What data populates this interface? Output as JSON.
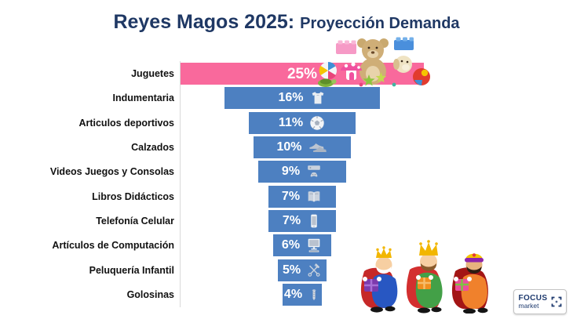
{
  "title": {
    "main": "Reyes Magos 2025:",
    "sub": "Proyección Demanda"
  },
  "chart_data": {
    "type": "bar",
    "subtype": "centered-funnel",
    "title": "Reyes Magos 2025: Proyección Demanda",
    "xlabel": "",
    "ylabel": "",
    "unit": "%",
    "xlim": [
      0,
      25
    ],
    "grid": false,
    "legend": false,
    "categories": [
      "Juguetes",
      "Indumentaria",
      "Articulos deportivos",
      "Calzados",
      "Videos Juegos y Consolas",
      "Libros Didácticos",
      "Telefonía Celular",
      "Artículos de Computación",
      "Peluquería Infantil",
      "Golosinas"
    ],
    "values": [
      25,
      16,
      11,
      10,
      9,
      7,
      7,
      6,
      5,
      4
    ],
    "value_labels": [
      "25%",
      "16%",
      "11%",
      "10%",
      "9%",
      "7%",
      "7%",
      "6%",
      "5%",
      "4%"
    ],
    "icons": [
      "toys-pile",
      "tshirt",
      "soccer-ball",
      "sneakers",
      "game-console",
      "open-book",
      "smartphone",
      "desktop-computer",
      "scissors-comb",
      "candy"
    ],
    "bar_colors": [
      "#f9699c",
      "#4d80c1",
      "#4d80c1",
      "#4d80c1",
      "#4d80c1",
      "#4d80c1",
      "#4d80c1",
      "#4d80c1",
      "#4d80c1",
      "#4d80c1"
    ]
  },
  "colors": {
    "title": "#1f3864",
    "label": "#111111",
    "value_text": "#ffffff",
    "bar_blue": "#4d80c1",
    "bar_pink": "#f9699c",
    "axis_line": "#d9d9d9",
    "background": "#ffffff"
  },
  "logo": {
    "top": "FOCUS",
    "bottom": "market"
  },
  "illustrations": {
    "top_right": "toys-pile-illustration",
    "bottom_right": "three-kings-illustration"
  }
}
